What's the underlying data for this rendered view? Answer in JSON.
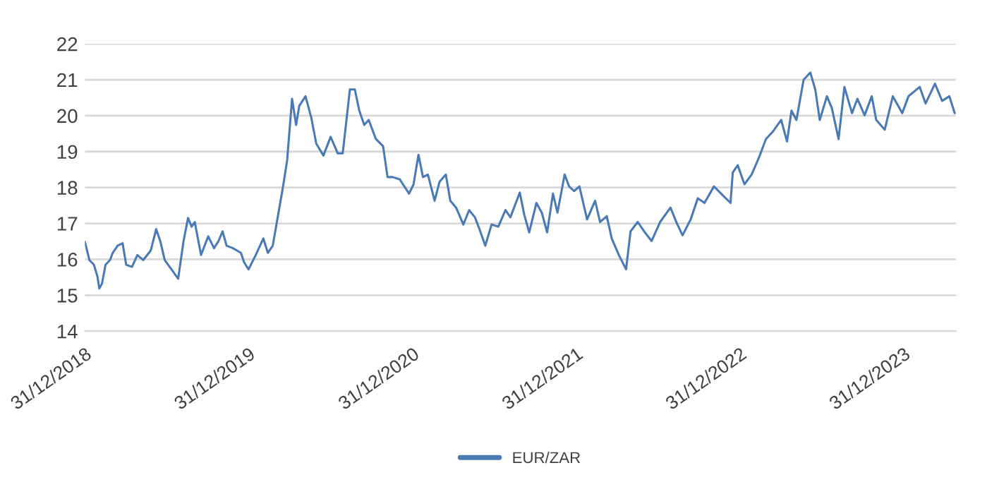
{
  "chart_data": {
    "type": "line",
    "x": [
      "2018-12-31",
      "2019-01-10",
      "2019-01-20",
      "2019-01-28",
      "2019-02-01",
      "2019-02-07",
      "2019-02-15",
      "2019-02-25",
      "2019-03-03",
      "2019-03-14",
      "2019-03-25",
      "2019-04-02",
      "2019-04-15",
      "2019-04-27",
      "2019-05-10",
      "2019-05-27",
      "2019-06-08",
      "2019-06-17",
      "2019-06-27",
      "2019-07-12",
      "2019-07-27",
      "2019-08-08",
      "2019-08-18",
      "2019-08-26",
      "2019-09-02",
      "2019-09-16",
      "2019-10-02",
      "2019-10-15",
      "2019-10-25",
      "2019-11-03",
      "2019-11-12",
      "2019-11-26",
      "2019-12-14",
      "2019-12-21",
      "2019-12-31",
      "2020-01-16",
      "2020-02-02",
      "2020-02-12",
      "2020-02-23",
      "2020-03-05",
      "2020-03-16",
      "2020-03-26",
      "2020-04-06",
      "2020-04-15",
      "2020-04-22",
      "2020-05-06",
      "2020-05-19",
      "2020-05-30",
      "2020-06-15",
      "2020-07-01",
      "2020-07-17",
      "2020-07-28",
      "2020-08-13",
      "2020-08-24",
      "2020-09-03",
      "2020-09-14",
      "2020-09-24",
      "2020-10-10",
      "2020-10-26",
      "2020-11-05",
      "2020-11-16",
      "2020-12-02",
      "2020-12-23",
      "2021-01-02",
      "2021-01-13",
      "2021-01-23",
      "2021-02-03",
      "2021-02-18",
      "2021-03-01",
      "2021-03-15",
      "2021-03-25",
      "2021-04-07",
      "2021-04-23",
      "2021-05-06",
      "2021-05-19",
      "2021-05-29",
      "2021-06-11",
      "2021-06-25",
      "2021-07-10",
      "2021-07-26",
      "2021-08-06",
      "2021-08-27",
      "2021-09-06",
      "2021-09-17",
      "2021-10-03",
      "2021-10-15",
      "2021-10-27",
      "2021-11-09",
      "2021-11-19",
      "2021-12-05",
      "2021-12-15",
      "2021-12-26",
      "2022-01-07",
      "2022-01-24",
      "2022-02-11",
      "2022-02-22",
      "2022-03-09",
      "2022-03-20",
      "2022-04-05",
      "2022-04-21",
      "2022-05-01",
      "2022-05-17",
      "2022-06-02",
      "2022-06-17",
      "2022-07-06",
      "2022-07-29",
      "2022-08-11",
      "2022-08-25",
      "2022-09-12",
      "2022-09-28",
      "2022-10-13",
      "2022-11-03",
      "2022-11-19",
      "2022-12-10",
      "2022-12-15",
      "2022-12-26",
      "2023-01-10",
      "2023-01-26",
      "2023-02-11",
      "2023-02-27",
      "2023-03-14",
      "2023-04-02",
      "2023-04-15",
      "2023-04-25",
      "2023-05-06",
      "2023-05-22",
      "2023-06-06",
      "2023-06-17",
      "2023-06-27",
      "2023-07-13",
      "2023-07-24",
      "2023-08-08",
      "2023-08-21",
      "2023-09-07",
      "2023-09-19",
      "2023-10-05",
      "2023-10-21",
      "2023-10-31",
      "2023-11-19",
      "2023-12-07",
      "2023-12-28",
      "2024-01-11",
      "2024-02-05",
      "2024-02-18",
      "2024-03-10",
      "2024-03-26",
      "2024-04-11",
      "2024-04-23"
    ],
    "series": [
      {
        "name": "EUR/ZAR",
        "color": "#4a7ab5",
        "values": [
          16.49,
          15.98,
          15.85,
          15.52,
          15.19,
          15.32,
          15.85,
          15.98,
          16.18,
          16.38,
          16.45,
          15.85,
          15.79,
          16.12,
          15.98,
          16.25,
          16.84,
          16.51,
          15.98,
          15.72,
          15.46,
          16.51,
          17.15,
          16.91,
          17.04,
          16.12,
          16.64,
          16.31,
          16.51,
          16.78,
          16.38,
          16.31,
          16.18,
          15.92,
          15.72,
          16.12,
          16.58,
          16.18,
          16.38,
          17.17,
          17.96,
          18.75,
          20.47,
          19.74,
          20.27,
          20.54,
          19.94,
          19.22,
          18.89,
          19.41,
          18.95,
          18.95,
          20.73,
          20.73,
          20.14,
          19.74,
          19.88,
          19.35,
          19.15,
          18.29,
          18.29,
          18.23,
          17.83,
          18.09,
          18.91,
          18.29,
          18.36,
          17.63,
          18.16,
          18.36,
          17.63,
          17.44,
          16.97,
          17.37,
          17.17,
          16.84,
          16.38,
          16.97,
          16.91,
          17.37,
          17.17,
          17.86,
          17.24,
          16.75,
          17.57,
          17.3,
          16.75,
          17.83,
          17.3,
          18.36,
          18.03,
          17.9,
          18.03,
          17.11,
          17.63,
          17.04,
          17.2,
          16.58,
          16.12,
          15.72,
          16.78,
          17.04,
          16.75,
          16.51,
          17.04,
          17.44,
          17.04,
          16.67,
          17.11,
          17.7,
          17.57,
          18.03,
          17.83,
          17.57,
          18.42,
          18.62,
          18.09,
          18.36,
          18.82,
          19.35,
          19.55,
          19.88,
          19.28,
          20.14,
          19.88,
          21.0,
          21.2,
          20.73,
          19.88,
          20.54,
          20.21,
          19.35,
          20.8,
          20.07,
          20.47,
          20.01,
          20.54,
          19.88,
          19.61,
          20.54,
          20.07,
          20.54,
          20.8,
          20.34,
          20.89,
          20.41,
          20.54,
          20.07
        ]
      }
    ],
    "xlim": [
      "2018-12-31",
      "2024-04-26"
    ],
    "xticks": [
      {
        "value": "2018-12-31",
        "label": "31/12/2018"
      },
      {
        "value": "2019-12-31",
        "label": "31/12/2019"
      },
      {
        "value": "2020-12-31",
        "label": "31/12/2020"
      },
      {
        "value": "2021-12-31",
        "label": "31/12/2021"
      },
      {
        "value": "2022-12-31",
        "label": "31/12/2022"
      },
      {
        "value": "2023-12-31",
        "label": "31/12/2023"
      }
    ],
    "ylim": [
      14,
      22
    ],
    "yticks": [
      14,
      15,
      16,
      17,
      18,
      19,
      20,
      21,
      22
    ],
    "grid": "y",
    "legend": "bottom",
    "marker": "none",
    "line_style": "solid"
  }
}
